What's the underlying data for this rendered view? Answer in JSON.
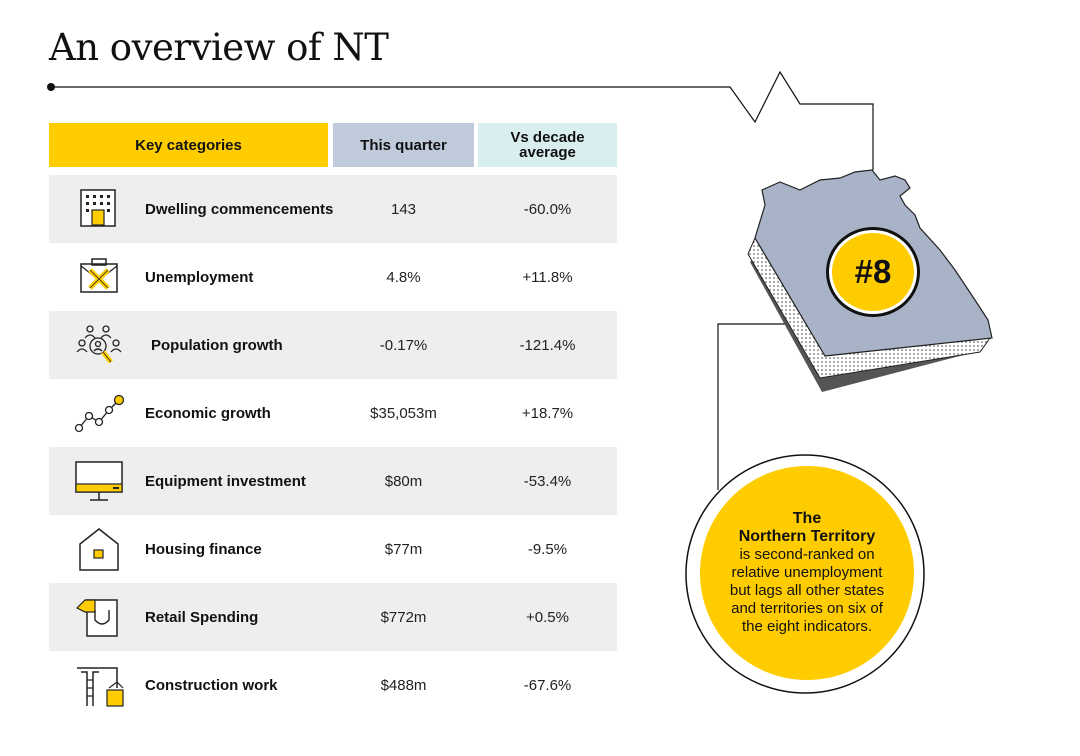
{
  "title": "An overview of NT",
  "table": {
    "headers": {
      "category": "Key categories",
      "quarter": "This quarter",
      "decade": "Vs decade average"
    },
    "rows": [
      {
        "label": "Dwelling commencements",
        "quarter": "143",
        "decade": "-60.0%",
        "icon": "building-icon"
      },
      {
        "label": "Unemployment",
        "quarter": "4.8%",
        "decade": "+11.8%",
        "icon": "briefcase-x-icon"
      },
      {
        "label": "Population growth",
        "quarter": "-0.17%",
        "decade": "-121.4%",
        "icon": "people-search-icon"
      },
      {
        "label": "Economic growth",
        "quarter": "$35,053m",
        "decade": "+18.7%",
        "icon": "trend-line-icon"
      },
      {
        "label": "Equipment investment",
        "quarter": "$80m",
        "decade": "-53.4%",
        "icon": "monitor-icon"
      },
      {
        "label": "Housing finance",
        "quarter": "$77m",
        "decade": "-9.5%",
        "icon": "house-icon"
      },
      {
        "label": "Retail Spending",
        "quarter": "$772m",
        "decade": "+0.5%",
        "icon": "shopping-bag-icon"
      },
      {
        "label": "Construction work",
        "quarter": "$488m",
        "decade": "-67.6%",
        "icon": "crane-icon"
      }
    ]
  },
  "rank": "#8",
  "callout": {
    "heading_line1": "The",
    "heading_line2": "Northern Territory",
    "body": "is second-ranked on relative unemployment but lags all other states and territories on six of the eight indicators."
  },
  "colors": {
    "accent_yellow": "#ffcc00",
    "quarter_header": "#bfcadb",
    "decade_header": "#d9eeee",
    "row_shade": "#eeeeee",
    "map_fill": "#a8b3c8"
  }
}
